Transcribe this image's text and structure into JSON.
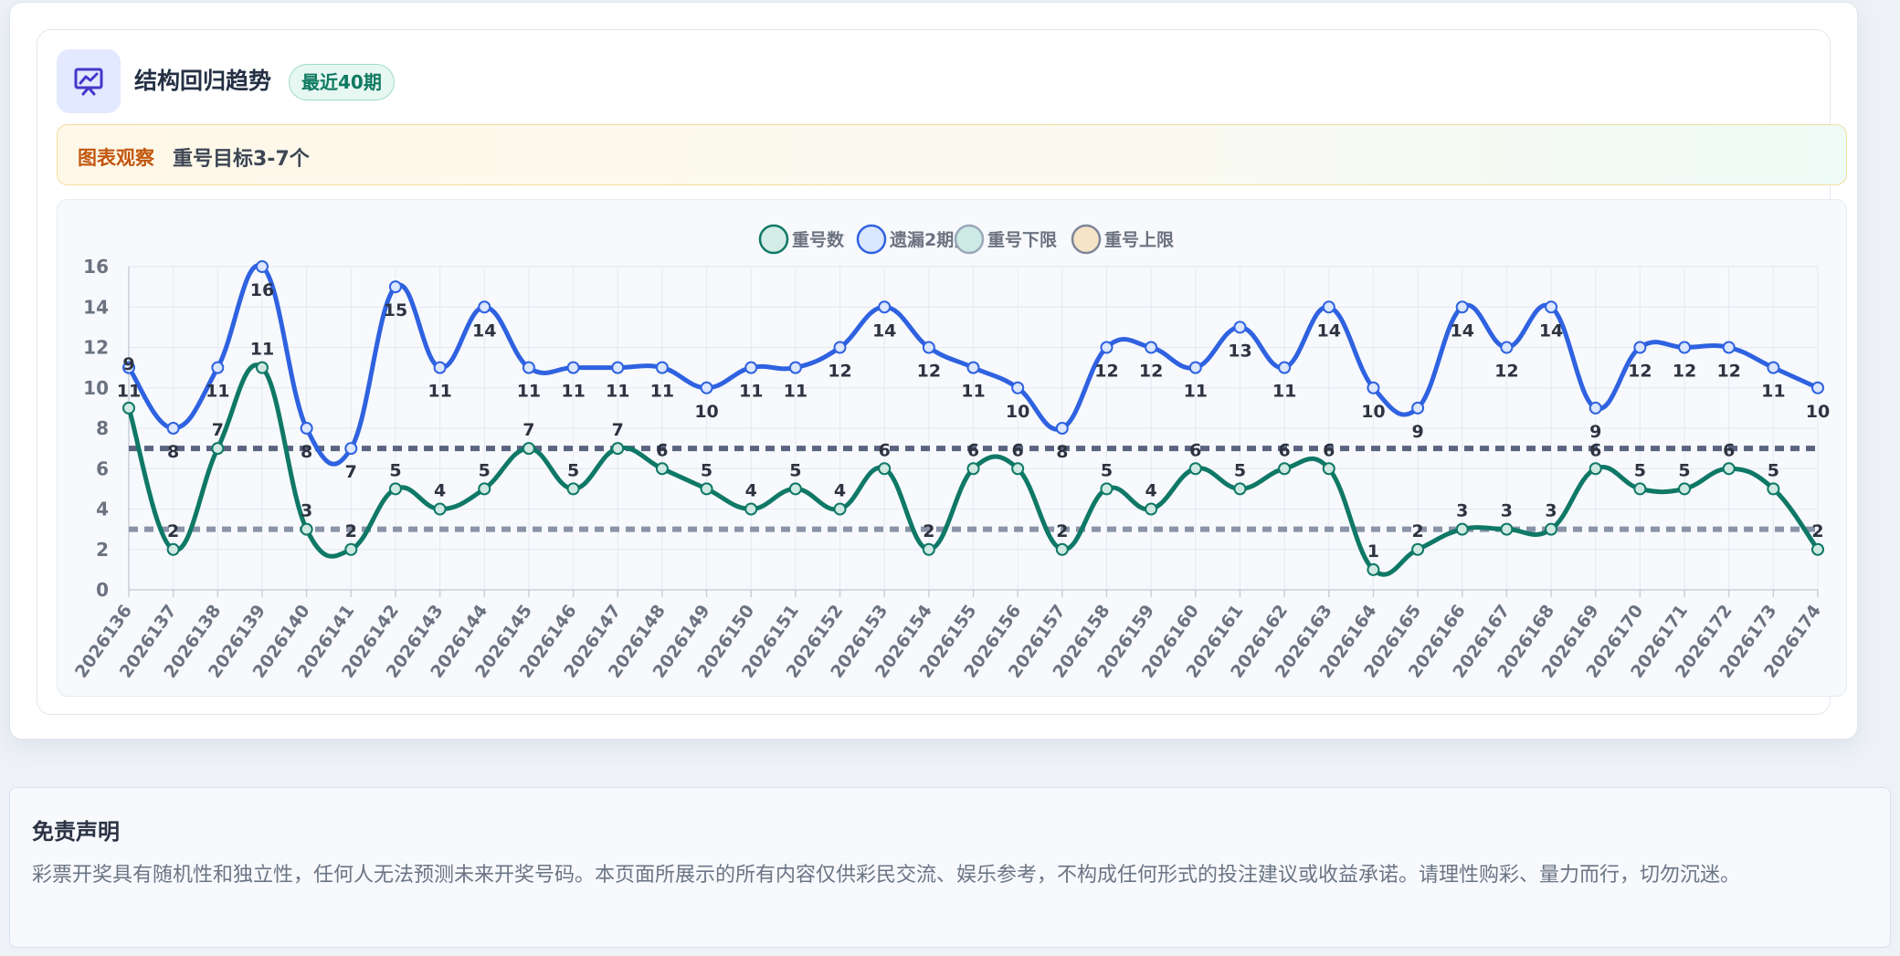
{
  "header": {
    "title": "结构回归趋势",
    "badge": "最近40期"
  },
  "observation": {
    "label": "图表观察",
    "text": "重号目标3-7个"
  },
  "colors": {
    "repeat": "#0f7866",
    "missed": "#2f62e0",
    "lower": "#8a93a8",
    "upper": "#5a6480"
  },
  "chart_data": {
    "type": "line",
    "categories": [
      "2026136",
      "2026137",
      "2026138",
      "2026139",
      "2026140",
      "2026141",
      "2026142",
      "2026143",
      "2026144",
      "2026145",
      "2026146",
      "2026147",
      "2026148",
      "2026149",
      "2026150",
      "2026151",
      "2026152",
      "2026153",
      "2026154",
      "2026155",
      "2026156",
      "2026157",
      "2026158",
      "2026159",
      "2026160",
      "2026161",
      "2026162",
      "2026163",
      "2026164",
      "2026165",
      "2026166",
      "2026167",
      "2026168",
      "2026169",
      "2026170",
      "2026171",
      "2026172",
      "2026173",
      "2026174"
    ],
    "series": [
      {
        "name": "重号数",
        "values": [
          9,
          2,
          7,
          11,
          3,
          2,
          5,
          4,
          5,
          7,
          5,
          7,
          6,
          5,
          4,
          5,
          4,
          6,
          2,
          6,
          6,
          2,
          5,
          4,
          6,
          5,
          6,
          6,
          1,
          2,
          3,
          3,
          3,
          6,
          5,
          5,
          6,
          5,
          2
        ]
      },
      {
        "name": "遗漏2期内",
        "values": [
          11,
          8,
          11,
          16,
          8,
          7,
          15,
          11,
          14,
          11,
          11,
          11,
          11,
          10,
          11,
          11,
          12,
          14,
          12,
          11,
          10,
          8,
          12,
          12,
          11,
          13,
          11,
          14,
          10,
          9,
          14,
          12,
          14,
          9,
          12,
          12,
          12,
          11,
          10
        ]
      },
      {
        "name": "重号下限",
        "values": [
          3,
          3,
          3,
          3,
          3,
          3,
          3,
          3,
          3,
          3,
          3,
          3,
          3,
          3,
          3,
          3,
          3,
          3,
          3,
          3,
          3,
          3,
          3,
          3,
          3,
          3,
          3,
          3,
          3,
          3,
          3,
          3,
          3,
          3,
          3,
          3,
          3,
          3,
          3
        ]
      },
      {
        "name": "重号上限",
        "values": [
          7,
          7,
          7,
          7,
          7,
          7,
          7,
          7,
          7,
          7,
          7,
          7,
          7,
          7,
          7,
          7,
          7,
          7,
          7,
          7,
          7,
          7,
          7,
          7,
          7,
          7,
          7,
          7,
          7,
          7,
          7,
          7,
          7,
          7,
          7,
          7,
          7,
          7,
          7
        ]
      }
    ],
    "ylim": [
      0,
      16
    ],
    "yticks": [
      0,
      2,
      4,
      6,
      8,
      10,
      12,
      14,
      16
    ],
    "grid": true,
    "legend": "top-center"
  },
  "disclaimer": {
    "title": "免责声明",
    "text": "彩票开奖具有随机性和独立性，任何人无法预测未来开奖号码。本页面所展示的所有内容仅供彩民交流、娱乐参考，不构成任何形式的投注建议或收益承诺。请理性购彩、量力而行，切勿沉迷。"
  }
}
